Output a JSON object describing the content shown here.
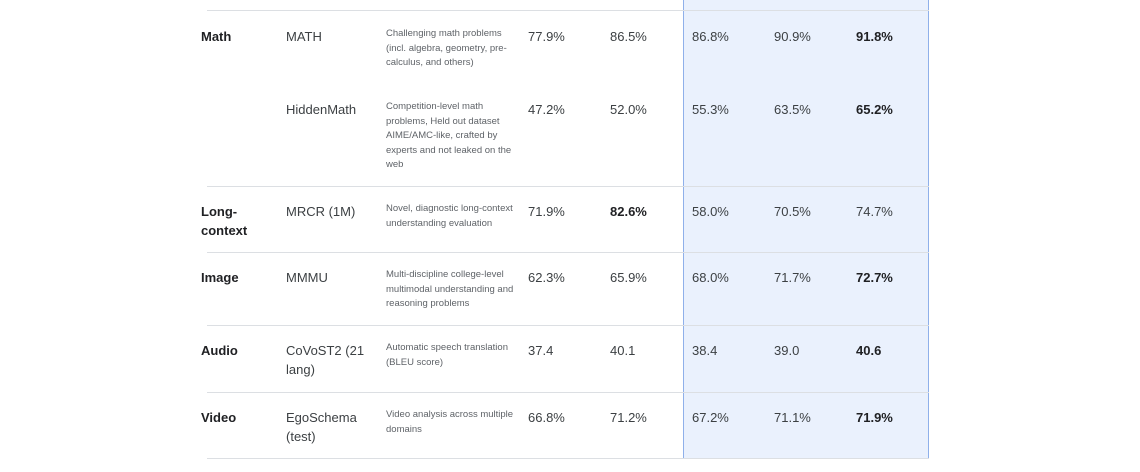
{
  "rows": [
    {
      "category": "Math",
      "benchmark": "MATH",
      "description": "Challenging math problems (incl. algebra, geometry, pre-calculus, and others)",
      "values": [
        "77.9%",
        "86.5%",
        "86.8%",
        "90.9%",
        "91.8%"
      ],
      "best_index": 4
    },
    {
      "category": "",
      "benchmark": "HiddenMath",
      "description": "Competition-level math problems, Held out dataset AIME/AMC-like, crafted by experts and not leaked on the web",
      "values": [
        "47.2%",
        "52.0%",
        "55.3%",
        "63.5%",
        "65.2%"
      ],
      "best_index": 4
    },
    {
      "category": "Long-context",
      "benchmark": "MRCR (1M)",
      "description": "Novel, diagnostic long-context understanding evaluation",
      "values": [
        "71.9%",
        "82.6%",
        "58.0%",
        "70.5%",
        "74.7%"
      ],
      "best_index": 1
    },
    {
      "category": "Image",
      "benchmark": "MMMU",
      "description": "Multi-discipline college-level multimodal understanding and reasoning problems",
      "values": [
        "62.3%",
        "65.9%",
        "68.0%",
        "71.7%",
        "72.7%"
      ],
      "best_index": 4
    },
    {
      "category": "Audio",
      "benchmark": "CoVoST2 (21 lang)",
      "description": "Automatic speech translation (BLEU score)",
      "values": [
        "37.4",
        "40.1",
        "38.4",
        "39.0",
        "40.6"
      ],
      "best_index": 4
    },
    {
      "category": "Video",
      "benchmark": "EgoSchema (test)",
      "description": "Video analysis across multiple domains",
      "values": [
        "66.8%",
        "71.2%",
        "67.2%",
        "71.1%",
        "71.9%"
      ],
      "best_index": 4
    }
  ]
}
